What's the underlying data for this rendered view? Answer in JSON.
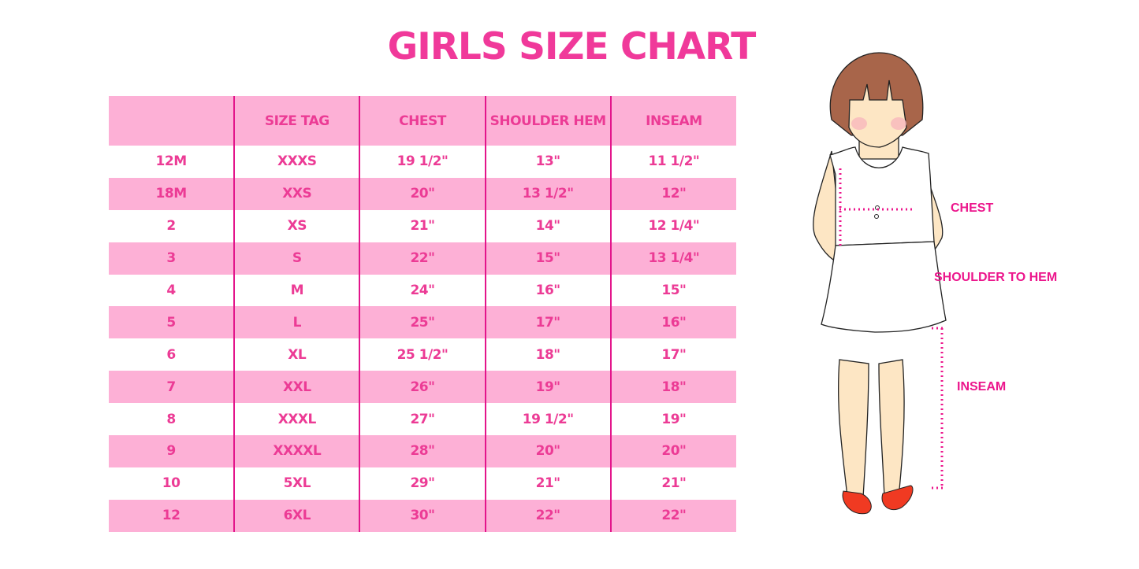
{
  "title": "GIRLS SIZE CHART",
  "table": {
    "headers": [
      "",
      "SIZE TAG",
      "CHEST",
      "SHOULDER HEM",
      "INSEAM"
    ],
    "rows": [
      [
        "12M",
        "XXXS",
        "19 1/2\"",
        "13\"",
        "11 1/2\""
      ],
      [
        "18M",
        "XXS",
        "20\"",
        "13 1/2\"",
        "12\""
      ],
      [
        "2",
        "XS",
        "21\"",
        "14\"",
        "12 1/4\""
      ],
      [
        "3",
        "S",
        "22\"",
        "15\"",
        "13 1/4\""
      ],
      [
        "4",
        "M",
        "24\"",
        "16\"",
        "15\""
      ],
      [
        "5",
        "L",
        "25\"",
        "17\"",
        "16\""
      ],
      [
        "6",
        "XL",
        "25 1/2\"",
        "18\"",
        "17\""
      ],
      [
        "7",
        "XXL",
        "26\"",
        "19\"",
        "18\""
      ],
      [
        "8",
        "XXXL",
        "27\"",
        "19 1/2\"",
        "19\""
      ],
      [
        "9",
        "XXXXL",
        "28\"",
        "20\"",
        "20\""
      ],
      [
        "10",
        "5XL",
        "29\"",
        "21\"",
        "21\""
      ],
      [
        "12",
        "6XL",
        "30\"",
        "22\"",
        "22\""
      ]
    ]
  },
  "illustration": {
    "labels": {
      "chest": "CHEST",
      "shoulder_to_hem": "SHOULDER TO HEM",
      "inseam": "INSEAM"
    },
    "icon": "girl-measurement-figure"
  },
  "colors": {
    "accent": "#ec3b95",
    "row_pink": "#fdb0d6",
    "divider": "#e3158b"
  }
}
